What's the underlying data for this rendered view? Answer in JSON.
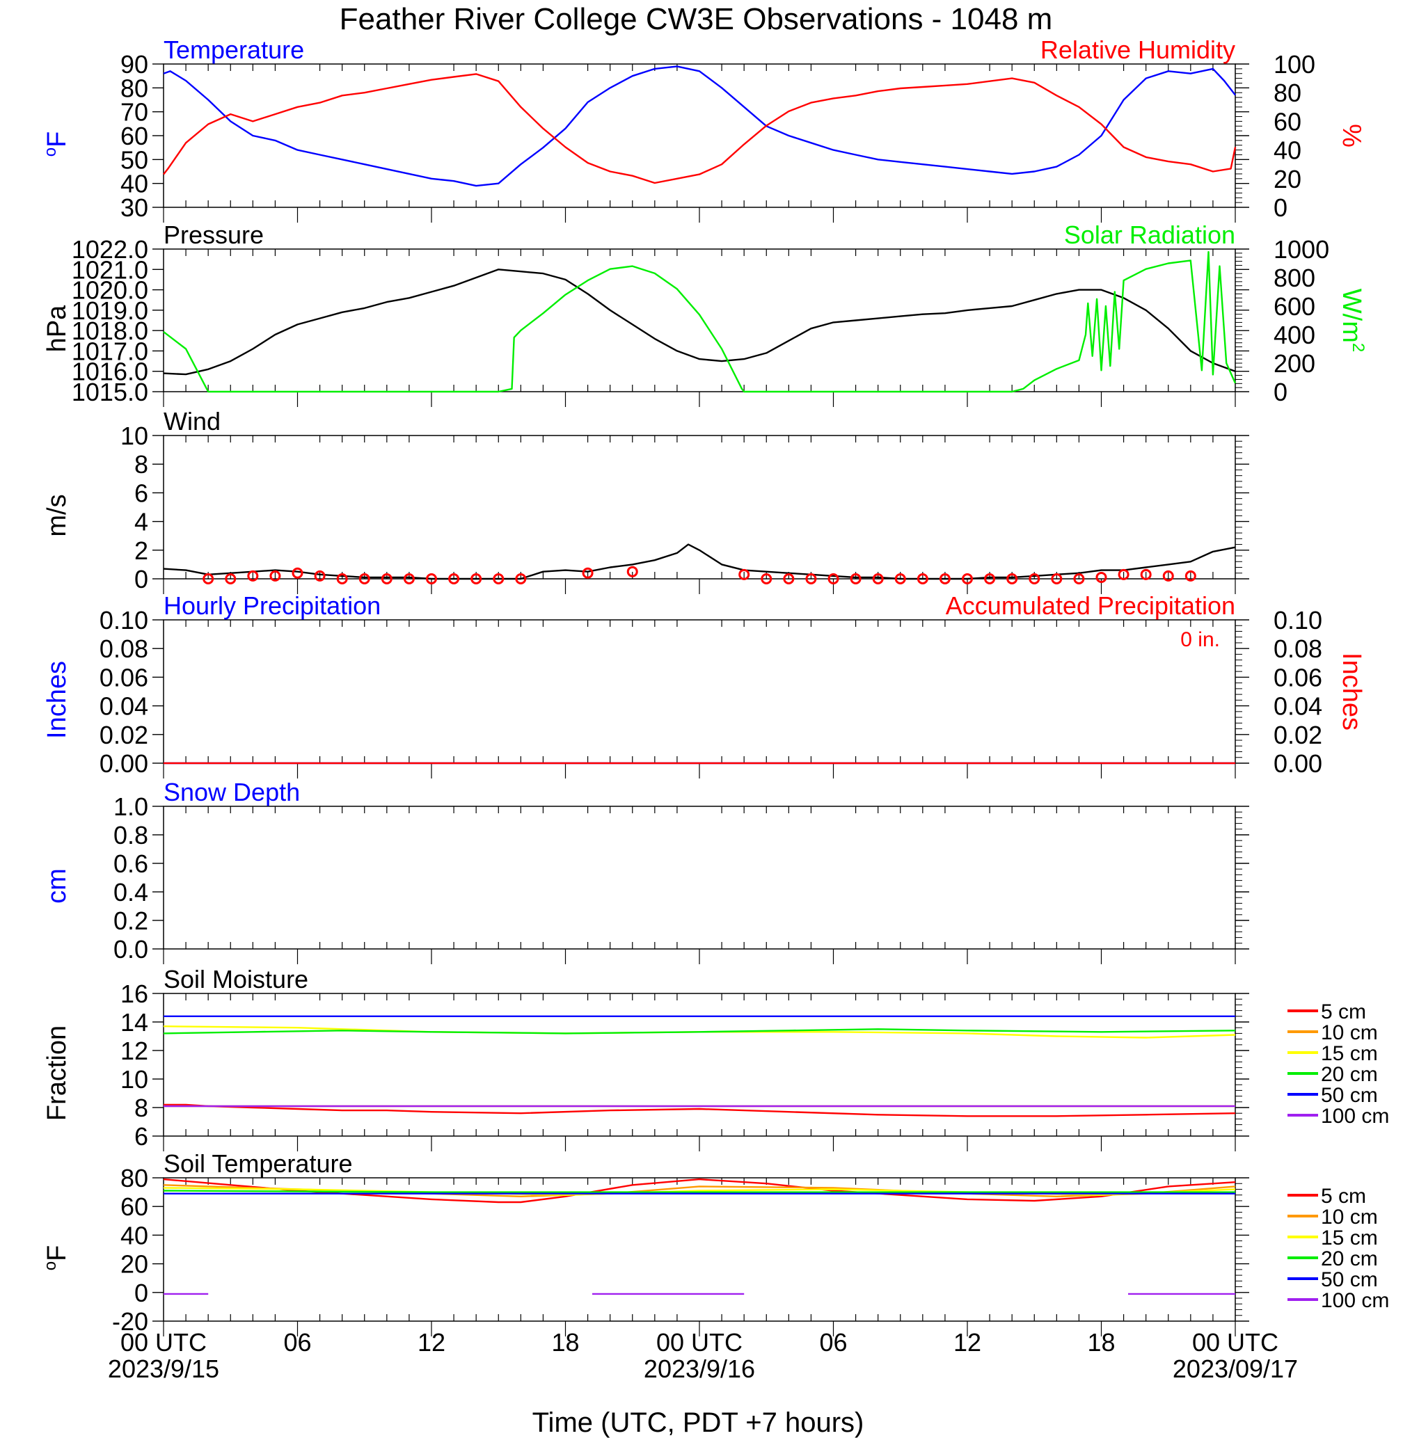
{
  "title": "Feather River College CW3E Observations - 1048 m",
  "colors": {
    "blue": "#0000ff",
    "red": "#ff0000",
    "black": "#000000",
    "green": "#00ee00",
    "orange": "#ff9900",
    "yellow": "#ffff00",
    "purple": "#a020f0"
  },
  "x_axis": {
    "label": "Time (UTC, PDT +7 hours)",
    "range": [
      0,
      48
    ],
    "tick_labels": [
      {
        "x": 0,
        "line1": "00 UTC",
        "line2": "2023/9/15"
      },
      {
        "x": 6,
        "line1": "06",
        "line2": ""
      },
      {
        "x": 12,
        "line1": "12",
        "line2": ""
      },
      {
        "x": 18,
        "line1": "18",
        "line2": ""
      },
      {
        "x": 24,
        "line1": "00 UTC",
        "line2": "2023/9/16"
      },
      {
        "x": 30,
        "line1": "06",
        "line2": ""
      },
      {
        "x": 36,
        "line1": "12",
        "line2": ""
      },
      {
        "x": 42,
        "line1": "18",
        "line2": ""
      },
      {
        "x": 48,
        "line1": "00 UTC",
        "line2": "2023/09/17"
      }
    ]
  },
  "chart_data": [
    {
      "type": "line",
      "title_left": "Temperature",
      "title_right": "Relative Humidity",
      "ylabel": "oF",
      "ylabel_right": "%",
      "ylim": [
        30,
        90
      ],
      "yticks": [
        "90",
        "80",
        "70",
        "60",
        "50",
        "40",
        "30"
      ],
      "ylim_right": [
        0,
        100
      ],
      "yticks_right": [
        "100",
        "80",
        "60",
        "40",
        "20",
        "0"
      ],
      "series": [
        {
          "name": "Temperature",
          "axis": "left",
          "color": "#0000ff",
          "x": [
            0,
            0.3,
            1,
            2,
            3,
            4,
            5,
            6,
            7,
            8,
            9,
            10,
            11,
            12,
            13,
            14,
            15,
            16,
            17,
            18,
            19,
            20,
            21,
            22,
            23,
            24,
            25,
            26,
            27,
            28,
            29,
            30,
            31,
            32,
            33,
            34,
            35,
            36,
            37,
            38,
            39,
            40,
            41,
            42,
            43,
            44,
            45,
            46,
            47,
            47.5,
            48
          ],
          "y": [
            86,
            87,
            83,
            75,
            66,
            60,
            58,
            54,
            52,
            50,
            48,
            46,
            44,
            42,
            41,
            39,
            40,
            48,
            55,
            63,
            74,
            80,
            85,
            88,
            89,
            87,
            80,
            72,
            64,
            60,
            57,
            54,
            52,
            50,
            49,
            48,
            47,
            46,
            45,
            44,
            45,
            47,
            52,
            60,
            75,
            84,
            87,
            86,
            88,
            83,
            77
          ]
        },
        {
          "name": "Relative Humidity",
          "axis": "right",
          "color": "#ff0000",
          "x": [
            0,
            0.2,
            1,
            2,
            3,
            4,
            5,
            6,
            7,
            8,
            9,
            10,
            11,
            12,
            13,
            14,
            15,
            16,
            17,
            18,
            19,
            20,
            21,
            22,
            23,
            24,
            25,
            26,
            27,
            28,
            29,
            30,
            31,
            32,
            33,
            34,
            35,
            36,
            37,
            38,
            39,
            40,
            41,
            42,
            43,
            44,
            45,
            46,
            47,
            47.8,
            48
          ],
          "y": [
            23,
            27,
            45,
            58,
            65,
            60,
            65,
            70,
            73,
            78,
            80,
            83,
            86,
            89,
            91,
            93,
            88,
            70,
            55,
            42,
            31,
            25,
            22,
            17,
            20,
            23,
            30,
            44,
            57,
            67,
            73,
            76,
            78,
            81,
            83,
            84,
            85,
            86,
            88,
            90,
            87,
            78,
            70,
            58,
            42,
            35,
            32,
            30,
            25,
            27,
            42
          ]
        }
      ]
    },
    {
      "type": "line",
      "title_left": "Pressure",
      "title_right": "Solar Radiation",
      "ylabel": "hPa",
      "ylabel_right": "W/m2",
      "ylim": [
        1015,
        1022
      ],
      "yticks": [
        "1022.0",
        "1021.0",
        "1020.0",
        "1019.0",
        "1018.0",
        "1017.0",
        "1016.0",
        "1015.0"
      ],
      "ylim_right": [
        0,
        1000
      ],
      "yticks_right": [
        "1000",
        "800",
        "600",
        "400",
        "200",
        "0"
      ],
      "series": [
        {
          "name": "Pressure",
          "axis": "left",
          "color": "#000000",
          "x": [
            0,
            1,
            2,
            3,
            4,
            5,
            6,
            7,
            8,
            9,
            10,
            11,
            12,
            13,
            14,
            15,
            16,
            17,
            18,
            19,
            20,
            21,
            22,
            23,
            24,
            25,
            26,
            27,
            28,
            29,
            30,
            31,
            32,
            33,
            34,
            35,
            36,
            37,
            38,
            39,
            40,
            41,
            42,
            43,
            44,
            45,
            46,
            47,
            48
          ],
          "y": [
            1015.9,
            1015.85,
            1016.1,
            1016.5,
            1017.1,
            1017.8,
            1018.3,
            1018.6,
            1018.9,
            1019.1,
            1019.4,
            1019.6,
            1019.9,
            1020.2,
            1020.6,
            1021.0,
            1020.9,
            1020.8,
            1020.5,
            1019.8,
            1019.0,
            1018.3,
            1017.6,
            1017.0,
            1016.6,
            1016.5,
            1016.6,
            1016.9,
            1017.5,
            1018.1,
            1018.4,
            1018.5,
            1018.6,
            1018.7,
            1018.8,
            1018.85,
            1019.0,
            1019.1,
            1019.2,
            1019.5,
            1019.8,
            1020.0,
            1020.0,
            1019.6,
            1019.0,
            1018.1,
            1017.0,
            1016.4,
            1016.0
          ]
        },
        {
          "name": "Solar Radiation",
          "axis": "right",
          "color": "#00ee00",
          "x": [
            0,
            1,
            1.9,
            2,
            15,
            15.6,
            15.7,
            16,
            17,
            18,
            19,
            20,
            21,
            22,
            23,
            24,
            25,
            25.9,
            26,
            38,
            38.5,
            39,
            40,
            41,
            41.3,
            41.4,
            41.6,
            41.8,
            42,
            42.2,
            42.4,
            42.6,
            42.8,
            43,
            44,
            45,
            46,
            46.5,
            46.8,
            47,
            47.3,
            47.6,
            48
          ],
          "y": [
            420,
            300,
            30,
            0,
            0,
            20,
            380,
            430,
            550,
            680,
            780,
            860,
            880,
            830,
            720,
            540,
            300,
            20,
            0,
            0,
            20,
            80,
            160,
            220,
            400,
            620,
            250,
            650,
            150,
            600,
            180,
            700,
            300,
            780,
            860,
            900,
            920,
            150,
            980,
            120,
            880,
            200,
            60
          ]
        }
      ]
    },
    {
      "type": "line",
      "title_left": "Wind",
      "ylabel": "m/s",
      "ylim": [
        0,
        10
      ],
      "yticks": [
        "10",
        "8",
        "6",
        "4",
        "2",
        "0"
      ],
      "series": [
        {
          "name": "Wind",
          "color": "#000000",
          "x": [
            0,
            1,
            2,
            3,
            4,
            5,
            6,
            7,
            8,
            9,
            10,
            11,
            12,
            13,
            14,
            15,
            16,
            17,
            18,
            19,
            20,
            21,
            22,
            23,
            23.5,
            24,
            25,
            26,
            27,
            28,
            29,
            30,
            31,
            32,
            33,
            34,
            35,
            36,
            37,
            38,
            39,
            40,
            41,
            42,
            43,
            44,
            45,
            46,
            47,
            48
          ],
          "y": [
            0.7,
            0.6,
            0.3,
            0.4,
            0.5,
            0.6,
            0.5,
            0.3,
            0.2,
            0.1,
            0.1,
            0.1,
            0.0,
            0.0,
            0.0,
            0.0,
            0.0,
            0.5,
            0.6,
            0.5,
            0.8,
            1.0,
            1.3,
            1.8,
            2.4,
            2.0,
            1.0,
            0.6,
            0.5,
            0.4,
            0.3,
            0.2,
            0.1,
            0.1,
            0.0,
            0.0,
            0.0,
            0.0,
            0.1,
            0.1,
            0.2,
            0.3,
            0.4,
            0.6,
            0.6,
            0.8,
            1.0,
            1.2,
            1.9,
            2.2
          ]
        },
        {
          "name": "Wind barbs",
          "color": "#ff0000",
          "x": [
            2,
            3,
            4,
            5,
            6,
            7,
            8,
            9,
            10,
            11,
            12,
            13,
            14,
            15,
            16,
            19,
            21,
            26,
            27,
            28,
            29,
            30,
            31,
            32,
            33,
            34,
            35,
            36,
            37,
            38,
            39,
            40,
            41,
            42,
            43,
            44,
            45,
            46
          ],
          "y": [
            0.0,
            0.0,
            0.2,
            0.2,
            0.4,
            0.2,
            0.0,
            0.0,
            0.0,
            0.0,
            0.0,
            0.0,
            0.0,
            0.0,
            0.0,
            0.4,
            0.5,
            0.3,
            0.0,
            0.0,
            0.0,
            0.0,
            0.0,
            0.0,
            0.0,
            0.0,
            0.0,
            0.0,
            0.0,
            0.0,
            0.0,
            0.0,
            0.0,
            0.1,
            0.3,
            0.3,
            0.2,
            0.2
          ]
        }
      ]
    },
    {
      "type": "line",
      "title_left": "Hourly Precipitation",
      "title_right": "Accumulated Precipitation",
      "note_right": "0 in.",
      "ylabel": "Inches",
      "ylabel_right": "Inches",
      "ylim": [
        0,
        0.1
      ],
      "yticks": [
        "0.10",
        "0.08",
        "0.06",
        "0.04",
        "0.02",
        "0.00"
      ],
      "ylim_right": [
        0,
        0.1
      ],
      "yticks_right": [
        "0.10",
        "0.08",
        "0.06",
        "0.04",
        "0.02",
        "0.00"
      ],
      "series": [
        {
          "name": "Hourly Precipitation",
          "axis": "left",
          "color": "#0000ff",
          "x": [
            0,
            48
          ],
          "y": [
            0,
            0
          ]
        },
        {
          "name": "Accumulated Precipitation",
          "axis": "right",
          "color": "#ff0000",
          "x": [
            0,
            48
          ],
          "y": [
            0,
            0
          ]
        }
      ]
    },
    {
      "type": "line",
      "title_left": "Snow Depth",
      "ylabel": "cm",
      "ylim": [
        0,
        1
      ],
      "yticks": [
        "1.0",
        "0.8",
        "0.6",
        "0.4",
        "0.2",
        "0.0"
      ],
      "series": []
    },
    {
      "type": "line",
      "title_left": "Soil Moisture",
      "ylabel": "Fraction",
      "ylim": [
        6,
        16
      ],
      "yticks": [
        "16",
        "14",
        "12",
        "10",
        "8",
        "6"
      ],
      "legend_position": "right",
      "series": [
        {
          "name": "5 cm",
          "color": "#ff0000",
          "x": [
            0,
            1,
            2,
            4,
            6,
            8,
            10,
            12,
            16,
            20,
            24,
            28,
            32,
            36,
            40,
            44,
            48
          ],
          "y": [
            8.2,
            8.2,
            8.1,
            8.0,
            7.9,
            7.8,
            7.8,
            7.7,
            7.6,
            7.8,
            7.9,
            7.7,
            7.5,
            7.4,
            7.4,
            7.5,
            7.6
          ]
        },
        {
          "name": "10 cm",
          "color": "#ff9900",
          "x": [
            0,
            48
          ],
          "y": [
            8.1,
            8.1
          ]
        },
        {
          "name": "15 cm",
          "color": "#ffff00",
          "x": [
            0,
            6,
            12,
            18,
            24,
            30,
            36,
            40,
            44,
            48
          ],
          "y": [
            13.7,
            13.6,
            13.3,
            13.2,
            13.3,
            13.3,
            13.2,
            13.0,
            12.9,
            13.1
          ]
        },
        {
          "name": "20 cm",
          "color": "#00ee00",
          "x": [
            0,
            4,
            8,
            12,
            18,
            24,
            28,
            32,
            36,
            42,
            48
          ],
          "y": [
            13.2,
            13.3,
            13.4,
            13.3,
            13.2,
            13.3,
            13.4,
            13.5,
            13.4,
            13.3,
            13.4
          ]
        },
        {
          "name": "50 cm",
          "color": "#0000ff",
          "x": [
            0,
            48
          ],
          "y": [
            14.4,
            14.4
          ]
        },
        {
          "name": "100 cm",
          "color": "#a020f0",
          "x": [
            0,
            48
          ],
          "y": [
            8.1,
            8.1
          ]
        }
      ]
    },
    {
      "type": "line",
      "title_left": "Soil Temperature",
      "ylabel": "oF",
      "ylim": [
        -20,
        80
      ],
      "yticks": [
        "80",
        "60",
        "40",
        "20",
        "0",
        "-20"
      ],
      "legend_position": "right",
      "series": [
        {
          "name": "5 cm",
          "color": "#ff0000",
          "x": [
            0,
            3,
            6,
            9,
            12,
            15,
            16,
            18,
            21,
            24,
            27,
            30,
            33,
            36,
            39,
            42,
            45,
            48
          ],
          "y": [
            79,
            75,
            71,
            68,
            65,
            63,
            63,
            67,
            75,
            79,
            76,
            71,
            68,
            65,
            64,
            67,
            74,
            77
          ]
        },
        {
          "name": "10 cm",
          "color": "#ff9900",
          "x": [
            0,
            6,
            12,
            16,
            20,
            24,
            30,
            36,
            40,
            44,
            48
          ],
          "y": [
            75,
            72,
            69,
            67,
            69,
            74,
            73,
            69,
            67,
            69,
            74
          ]
        },
        {
          "name": "15 cm",
          "color": "#ffff00",
          "x": [
            0,
            6,
            12,
            18,
            24,
            30,
            36,
            42,
            48
          ],
          "y": [
            73,
            72,
            70,
            68,
            71,
            72,
            70,
            68,
            72
          ]
        },
        {
          "name": "20 cm",
          "color": "#00ee00",
          "x": [
            0,
            12,
            24,
            36,
            48
          ],
          "y": [
            71,
            70,
            70,
            70,
            70
          ]
        },
        {
          "name": "50 cm",
          "color": "#0000ff",
          "x": [
            0,
            48
          ],
          "y": [
            69,
            69
          ]
        },
        {
          "name": "100 cm",
          "color": "#a020f0",
          "segments": [
            {
              "x": [
                0,
                2
              ],
              "y": [
                -1,
                -1
              ]
            },
            {
              "x": [
                19.2,
                26
              ],
              "y": [
                -1,
                -1
              ]
            },
            {
              "x": [
                43.2,
                48
              ],
              "y": [
                -1,
                -1
              ]
            }
          ]
        }
      ]
    }
  ]
}
